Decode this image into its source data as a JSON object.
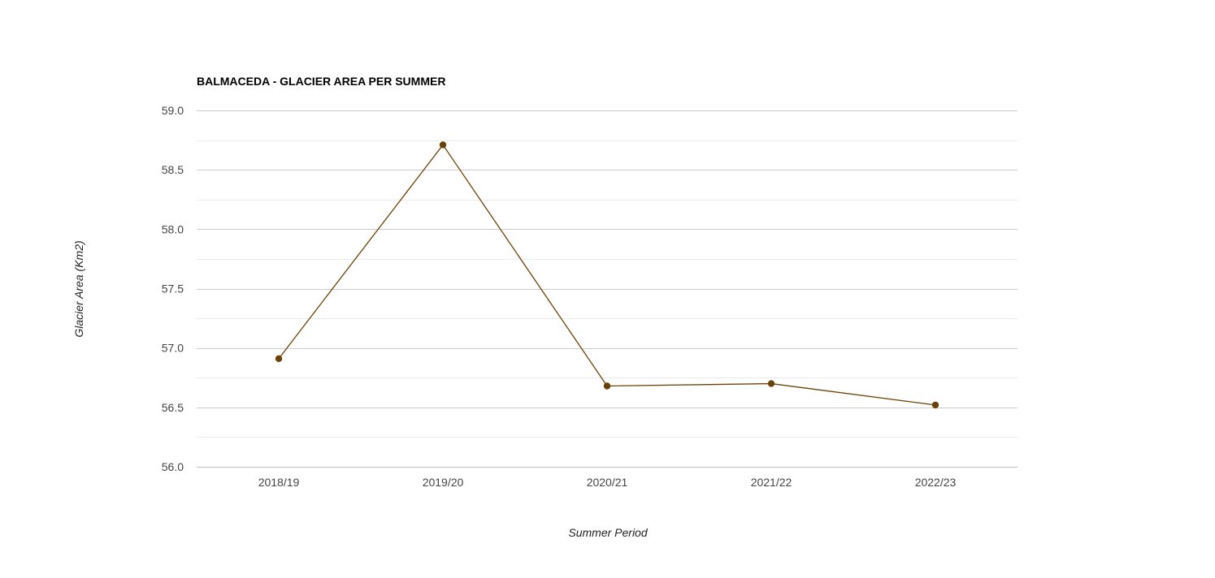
{
  "chart_data": {
    "type": "line",
    "title": "BALMACEDA - GLACIER AREA PER SUMMER",
    "xlabel": "Summer Period",
    "ylabel": "Glacier Area (Km2)",
    "categories": [
      "2018/19",
      "2019/20",
      "2020/21",
      "2021/22",
      "2022/23"
    ],
    "series": [
      {
        "values": [
          56.91,
          58.71,
          56.68,
          56.7,
          56.52
        ],
        "color": "#6b4206"
      }
    ],
    "ylim": [
      56.0,
      59.0
    ],
    "yticks": [
      "56.0",
      "56.5",
      "57.0",
      "57.5",
      "58.0",
      "58.5",
      "59.0"
    ],
    "grid": true,
    "legend": "none"
  }
}
